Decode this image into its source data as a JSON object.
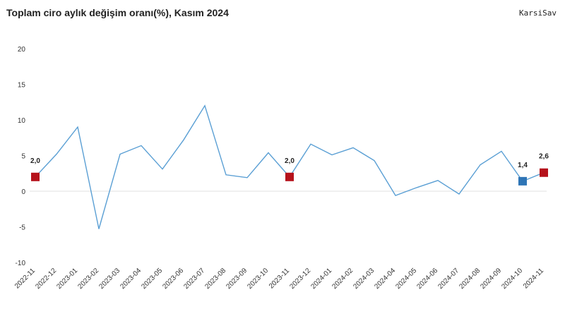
{
  "header": {
    "title": "Toplam ciro aylık değişim oranı(%), Kasım 2024",
    "brand": "KarsiSav"
  },
  "chart_data": {
    "type": "line",
    "title": "Toplam ciro aylık değişim oranı(%), Kasım 2024",
    "xlabel": "",
    "ylabel": "",
    "ylim": [
      -10,
      20
    ],
    "yticks": [
      -10,
      -5,
      0,
      5,
      10,
      15,
      20
    ],
    "ytick_labels": [
      "-10",
      "-5",
      "0",
      "5",
      "10",
      "15",
      "20"
    ],
    "categories": [
      "2022-11",
      "2022-12",
      "2023-01",
      "2023-02",
      "2023-03",
      "2023-04",
      "2023-05",
      "2023-06",
      "2023-07",
      "2023-08",
      "2023-09",
      "2023-10",
      "2023-11",
      "2023-12",
      "2024-01",
      "2024-02",
      "2024-03",
      "2024-04",
      "2024-05",
      "2024-06",
      "2024-07",
      "2024-08",
      "2024-09",
      "2024-10",
      "2024-11"
    ],
    "series": [
      {
        "values": [
          2.0,
          5.2,
          9.0,
          -5.3,
          5.2,
          6.4,
          3.1,
          7.2,
          12.0,
          2.3,
          1.9,
          5.4,
          2.0,
          6.6,
          5.1,
          6.1,
          4.3,
          -0.6,
          0.5,
          1.5,
          -0.4,
          3.7,
          5.6,
          1.4,
          2.6
        ],
        "color": "#5a9fd4"
      }
    ],
    "markers": [
      {
        "index": 0,
        "label": "2,0",
        "color": "#b5121b"
      },
      {
        "index": 12,
        "label": "2,0",
        "color": "#b5121b"
      },
      {
        "index": 23,
        "label": "1,4",
        "color": "#2e75b6"
      },
      {
        "index": 24,
        "label": "2,6",
        "color": "#b5121b"
      }
    ],
    "grid": false,
    "zero_line": true
  }
}
